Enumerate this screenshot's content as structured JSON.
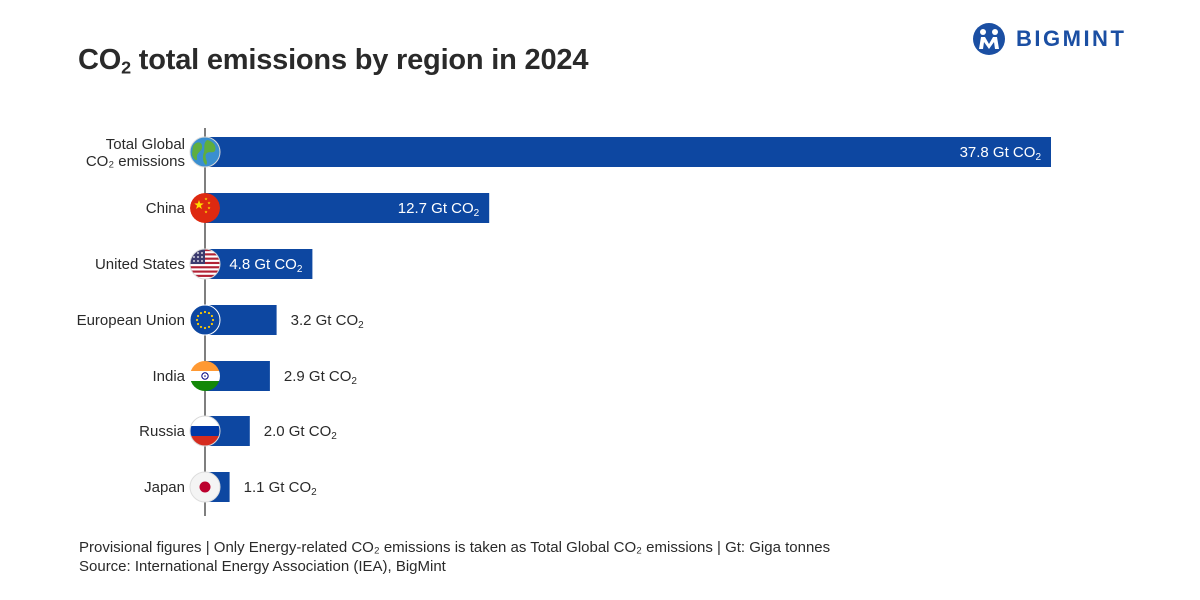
{
  "title": {
    "pre": "CO",
    "sub": "2",
    "post": " total emissions by region in 2024"
  },
  "brand": {
    "name": "BIGMINT"
  },
  "colors": {
    "bar": "#0d47a1",
    "axis": "#555555",
    "label": "#2a2a2a"
  },
  "chart_data": {
    "type": "bar",
    "orientation": "horizontal",
    "unit_pre": "Gt CO",
    "unit_sub": "2",
    "categories": [
      {
        "label": [
          "Total Global",
          "CO₂ emissions"
        ],
        "flag": "globe-icon"
      },
      {
        "label": [
          "China"
        ],
        "flag": "china-flag-icon"
      },
      {
        "label": [
          "United States"
        ],
        "flag": "us-flag-icon"
      },
      {
        "label": [
          "European Union"
        ],
        "flag": "eu-flag-icon"
      },
      {
        "label": [
          "India"
        ],
        "flag": "india-flag-icon"
      },
      {
        "label": [
          "Russia"
        ],
        "flag": "russia-flag-icon"
      },
      {
        "label": [
          "Japan"
        ],
        "flag": "japan-flag-icon"
      }
    ],
    "values": [
      37.8,
      12.7,
      4.8,
      3.2,
      2.9,
      2.0,
      1.1
    ],
    "value_labels": [
      "37.8",
      "12.7",
      "4.8",
      "3.2",
      "2.9",
      "2.0",
      "1.1"
    ],
    "xlim": [
      0,
      37.8
    ],
    "grid": false,
    "legend": "none"
  },
  "footnote": {
    "line1": "Provisional figures | Only Energy-related CO₂ emissions is taken as Total Global CO₂ emissions  | Gt: Giga tonnes",
    "line2": "Source: International Energy Association (IEA), BigMint"
  }
}
